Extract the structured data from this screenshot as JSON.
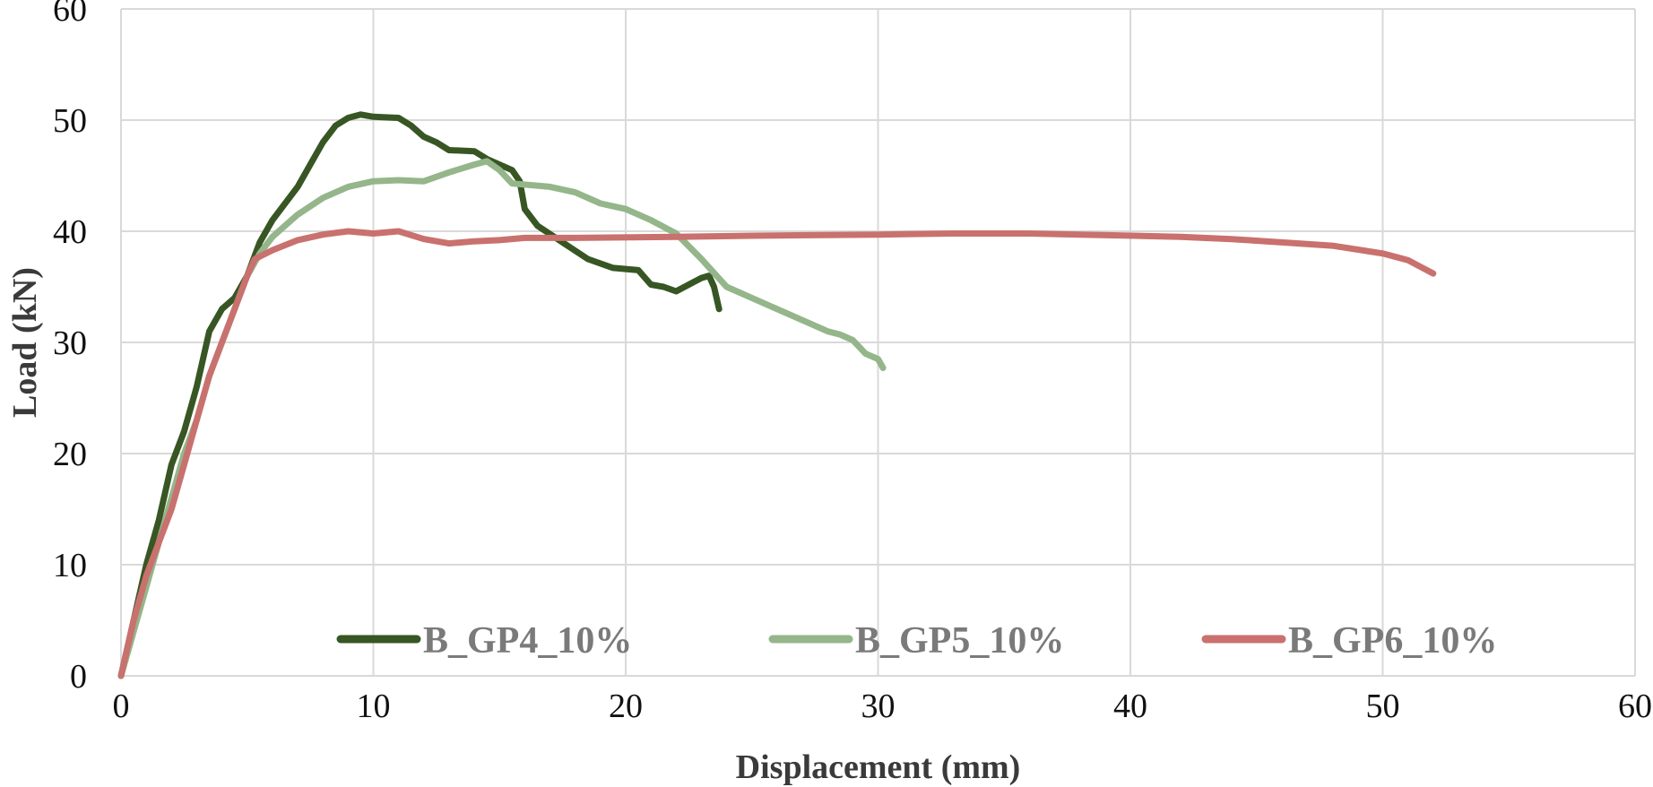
{
  "chart_data": {
    "type": "line",
    "title": "",
    "xlabel": "Displacement (mm)",
    "ylabel": "Load (kN)",
    "xlim": [
      0,
      60
    ],
    "ylim": [
      0,
      60
    ],
    "x_ticks": [
      "0",
      "10",
      "20",
      "30",
      "40",
      "50",
      "60"
    ],
    "y_ticks": [
      "0",
      "10",
      "20",
      "30",
      "40",
      "50",
      "60"
    ],
    "grid": true,
    "legend_position": "bottom-inside",
    "series": [
      {
        "name": "B_GP4_10%",
        "color": "#375623",
        "points": [
          [
            0,
            0
          ],
          [
            0.5,
            5
          ],
          [
            1,
            10
          ],
          [
            1.5,
            14
          ],
          [
            2,
            19
          ],
          [
            2.5,
            22
          ],
          [
            3,
            26
          ],
          [
            3.5,
            31
          ],
          [
            4,
            33
          ],
          [
            4.5,
            34
          ],
          [
            5,
            36
          ],
          [
            5.5,
            39
          ],
          [
            6,
            41
          ],
          [
            6.5,
            42.5
          ],
          [
            7,
            44
          ],
          [
            7.5,
            46
          ],
          [
            8,
            48
          ],
          [
            8.5,
            49.5
          ],
          [
            9,
            50.2
          ],
          [
            9.5,
            50.5
          ],
          [
            10,
            50.3
          ],
          [
            11,
            50.2
          ],
          [
            11.5,
            49.5
          ],
          [
            12,
            48.5
          ],
          [
            12.5,
            48
          ],
          [
            13,
            47.3
          ],
          [
            14,
            47.2
          ],
          [
            14.5,
            46.5
          ],
          [
            15.5,
            45.5
          ],
          [
            15.8,
            44.5
          ],
          [
            16,
            42
          ],
          [
            16.5,
            40.5
          ],
          [
            17.5,
            39
          ],
          [
            18.5,
            37.5
          ],
          [
            19.5,
            36.7
          ],
          [
            20.5,
            36.5
          ],
          [
            21,
            35.2
          ],
          [
            21.5,
            35
          ],
          [
            22,
            34.6
          ],
          [
            22.5,
            35.2
          ],
          [
            23,
            35.8
          ],
          [
            23.3,
            36
          ],
          [
            23.5,
            35
          ],
          [
            23.7,
            33
          ]
        ]
      },
      {
        "name": "B_GP5_10%",
        "color": "#94b68a",
        "points": [
          [
            0,
            0
          ],
          [
            0.5,
            4
          ],
          [
            1,
            8
          ],
          [
            1.5,
            12
          ],
          [
            2,
            16
          ],
          [
            2.5,
            20
          ],
          [
            3,
            23
          ],
          [
            3.5,
            27
          ],
          [
            4,
            30
          ],
          [
            4.5,
            33
          ],
          [
            5,
            36
          ],
          [
            5.5,
            38
          ],
          [
            6,
            39.5
          ],
          [
            6.5,
            40.5
          ],
          [
            7,
            41.5
          ],
          [
            8,
            43
          ],
          [
            9,
            44
          ],
          [
            10,
            44.5
          ],
          [
            11,
            44.6
          ],
          [
            12,
            44.5
          ],
          [
            13,
            45.3
          ],
          [
            14,
            46
          ],
          [
            14.5,
            46.3
          ],
          [
            15,
            45.5
          ],
          [
            15.5,
            44.3
          ],
          [
            17,
            44
          ],
          [
            18,
            43.5
          ],
          [
            19,
            42.5
          ],
          [
            20,
            42
          ],
          [
            21,
            41
          ],
          [
            22,
            39.8
          ],
          [
            23,
            37.5
          ],
          [
            24,
            35
          ],
          [
            25,
            34
          ],
          [
            26,
            33
          ],
          [
            27,
            32
          ],
          [
            28,
            31
          ],
          [
            28.5,
            30.7
          ],
          [
            29,
            30.2
          ],
          [
            29.5,
            29
          ],
          [
            30,
            28.5
          ],
          [
            30.2,
            27.7
          ]
        ]
      },
      {
        "name": "B_GP6_10%",
        "color": "#c9716e",
        "points": [
          [
            0,
            0
          ],
          [
            0.5,
            5
          ],
          [
            1,
            9
          ],
          [
            1.5,
            12
          ],
          [
            2,
            15
          ],
          [
            2.5,
            19
          ],
          [
            3,
            23
          ],
          [
            3.5,
            27
          ],
          [
            4,
            30
          ],
          [
            4.5,
            33
          ],
          [
            5,
            36
          ],
          [
            5.3,
            37.5
          ],
          [
            6,
            38.3
          ],
          [
            7,
            39.2
          ],
          [
            8,
            39.7
          ],
          [
            9,
            40
          ],
          [
            10,
            39.8
          ],
          [
            11,
            40
          ],
          [
            12,
            39.3
          ],
          [
            13,
            38.9
          ],
          [
            14,
            39.1
          ],
          [
            15,
            39.2
          ],
          [
            16,
            39.4
          ],
          [
            18,
            39.4
          ],
          [
            22,
            39.5
          ],
          [
            25,
            39.6
          ],
          [
            30,
            39.7
          ],
          [
            33,
            39.8
          ],
          [
            36,
            39.8
          ],
          [
            38,
            39.7
          ],
          [
            42,
            39.5
          ],
          [
            44,
            39.3
          ],
          [
            46,
            39
          ],
          [
            48,
            38.7
          ],
          [
            50,
            38
          ],
          [
            51,
            37.4
          ],
          [
            51.5,
            36.8
          ],
          [
            52,
            36.2
          ]
        ]
      }
    ]
  }
}
